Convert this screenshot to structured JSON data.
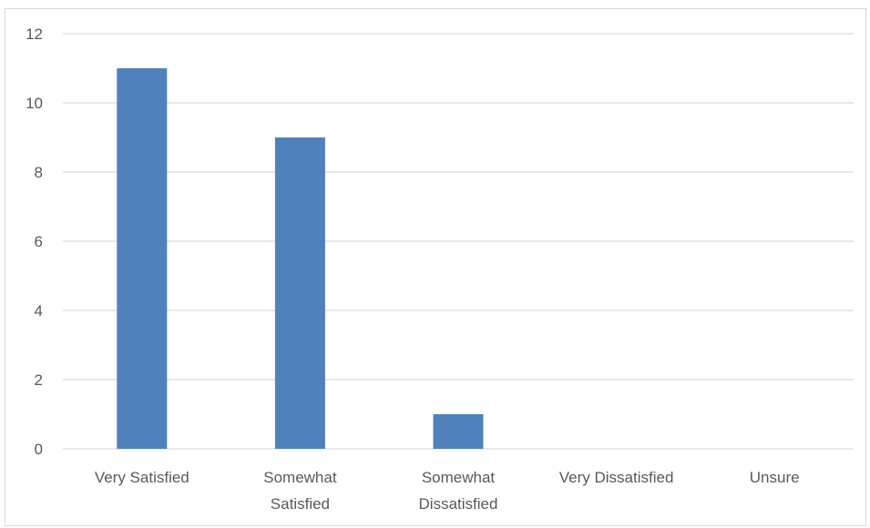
{
  "chart_data": {
    "type": "bar",
    "categories": [
      [
        "Very Satisfied"
      ],
      [
        "Somewhat",
        "Satisfied"
      ],
      [
        "Somewhat",
        "Dissatisfied"
      ],
      [
        "Very Dissatisfied"
      ],
      [
        "Unsure"
      ]
    ],
    "values": [
      11,
      9,
      1,
      0,
      0
    ],
    "title": "",
    "xlabel": "",
    "ylabel": "",
    "ylim": [
      0,
      12
    ],
    "yticks": [
      "0",
      "2",
      "4",
      "6",
      "8",
      "10",
      "12"
    ],
    "grid": true,
    "legend": "none",
    "bar_color": "#4f81bd",
    "grid_color": "#d9d9d9",
    "tick_label_color": "#595959"
  }
}
